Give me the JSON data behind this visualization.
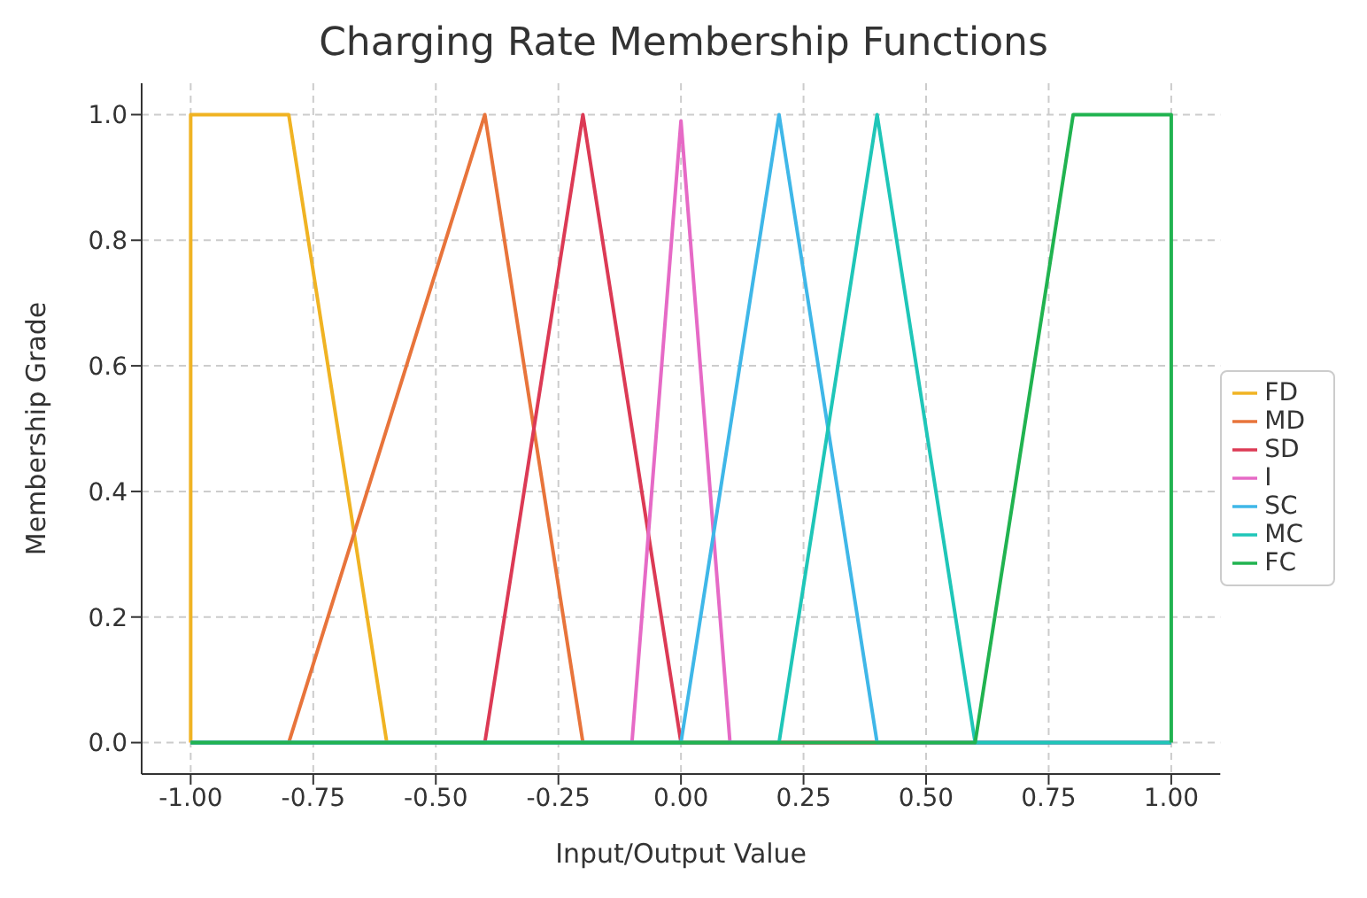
{
  "chart_data": {
    "type": "line",
    "title": "Charging Rate Membership Functions",
    "xlabel": "Input/Output Value",
    "ylabel": "Membership Grade",
    "series": [
      {
        "name": "FD",
        "color": "#f0b323",
        "x": [
          -1,
          -1,
          -0.8,
          -0.6,
          1
        ],
        "values": [
          0,
          1,
          1,
          0,
          0
        ]
      },
      {
        "name": "MD",
        "color": "#e8743b",
        "x": [
          -1,
          -0.8,
          -0.4,
          -0.2,
          1
        ],
        "values": [
          0,
          0,
          1,
          0,
          0
        ]
      },
      {
        "name": "SD",
        "color": "#dc3a55",
        "x": [
          -1,
          -0.4,
          -0.2,
          0,
          1
        ],
        "values": [
          0,
          0,
          1,
          0,
          0
        ]
      },
      {
        "name": "I",
        "color": "#e66ac6",
        "x": [
          -1,
          -0.1,
          0,
          0.1,
          1
        ],
        "values": [
          0,
          0,
          0.99,
          0,
          0
        ]
      },
      {
        "name": "SC",
        "color": "#3fb7e8",
        "x": [
          -1,
          0,
          0.2,
          0.4,
          1
        ],
        "values": [
          0,
          0,
          1,
          0,
          0
        ]
      },
      {
        "name": "MC",
        "color": "#1fc6b8",
        "x": [
          -1,
          0.2,
          0.4,
          0.6,
          1
        ],
        "values": [
          0,
          0,
          1,
          0,
          0
        ]
      },
      {
        "name": "FC",
        "color": "#21b350",
        "x": [
          -1,
          0.6,
          0.8,
          1,
          1
        ],
        "values": [
          0,
          0,
          1,
          1,
          0
        ]
      }
    ],
    "xlim": [
      -1.1,
      1.1
    ],
    "xticks": [
      {
        "value": -1,
        "label": "-1.00"
      },
      {
        "value": -0.75,
        "label": "-0.75"
      },
      {
        "value": -0.5,
        "label": "-0.50"
      },
      {
        "value": -0.25,
        "label": "-0.25"
      },
      {
        "value": 0,
        "label": "0.00"
      },
      {
        "value": 0.25,
        "label": "0.25"
      },
      {
        "value": 0.5,
        "label": "0.50"
      },
      {
        "value": 0.75,
        "label": "0.75"
      },
      {
        "value": 1,
        "label": "1.00"
      }
    ],
    "ylim": [
      -0.05,
      1.05
    ],
    "yticks": [
      {
        "value": 0,
        "label": "0.0"
      },
      {
        "value": 0.2,
        "label": "0.2"
      },
      {
        "value": 0.4,
        "label": "0.4"
      },
      {
        "value": 0.6,
        "label": "0.6"
      },
      {
        "value": 0.8,
        "label": "0.8"
      },
      {
        "value": 1,
        "label": "1.0"
      }
    ],
    "grid": true,
    "legend": "right",
    "marker": "none",
    "line_style": "solid"
  }
}
